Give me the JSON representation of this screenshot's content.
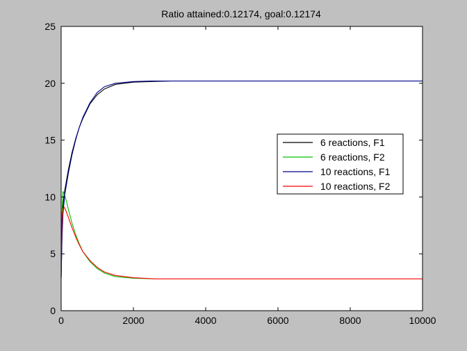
{
  "window": {
    "background_color": "#c0c0c0"
  },
  "chart_data": {
    "type": "line",
    "title": "Ratio attained:0.12174, goal:0.12174",
    "xlabel": "",
    "ylabel": "",
    "xlim": [
      0,
      10000
    ],
    "ylim": [
      0,
      25
    ],
    "x_ticks": [
      0,
      2000,
      4000,
      6000,
      8000,
      10000
    ],
    "y_ticks": [
      0,
      5,
      10,
      15,
      20,
      25
    ],
    "x_tick_labels": [
      "0",
      "2000",
      "4000",
      "6000",
      "8000",
      "10000"
    ],
    "y_tick_labels": [
      "0",
      "5",
      "10",
      "15",
      "20",
      "25"
    ],
    "grid": false,
    "legend_position": "right-middle",
    "series": [
      {
        "name": "6 reactions, F1",
        "color": "#000000",
        "x": [
          0,
          25,
          50,
          100,
          200,
          300,
          400,
          500,
          600,
          800,
          1000,
          1200,
          1500,
          2000,
          2500,
          3000
        ],
        "y": [
          2.9,
          7.0,
          9.3,
          10.6,
          12.4,
          13.9,
          15.1,
          16.1,
          16.9,
          18.2,
          19.0,
          19.5,
          19.9,
          20.1,
          20.15,
          20.2
        ]
      },
      {
        "name": "6 reactions, F2",
        "color": "#00c000",
        "x": [
          0,
          20,
          50,
          100,
          150,
          200,
          300,
          400,
          500,
          600,
          800,
          1000,
          1200,
          1500,
          2000,
          2600
        ],
        "y": [
          2.9,
          8.5,
          10.5,
          10.1,
          9.6,
          8.9,
          7.7,
          6.7,
          5.9,
          5.2,
          4.3,
          3.7,
          3.3,
          3.0,
          2.85,
          2.8
        ]
      },
      {
        "name": "10 reactions, F1",
        "color": "#00008b",
        "x": [
          0,
          25,
          50,
          100,
          200,
          300,
          400,
          500,
          600,
          800,
          1000,
          1200,
          1500,
          2000,
          2500,
          3000,
          4000,
          6000,
          8000,
          10000
        ],
        "y": [
          2.9,
          6.5,
          8.5,
          10.2,
          12.1,
          13.7,
          15.0,
          16.1,
          17.0,
          18.3,
          19.2,
          19.7,
          20.0,
          20.15,
          20.2,
          20.2,
          20.2,
          20.2,
          20.2,
          20.2
        ]
      },
      {
        "name": "10 reactions, F2",
        "color": "#ff0000",
        "x": [
          0,
          20,
          50,
          80,
          120,
          200,
          300,
          400,
          500,
          600,
          800,
          1000,
          1200,
          1500,
          2000,
          2600,
          4000,
          6000,
          8000,
          10000
        ],
        "y": [
          2.9,
          8.0,
          8.9,
          9.1,
          8.9,
          8.2,
          7.3,
          6.5,
          5.8,
          5.2,
          4.4,
          3.8,
          3.4,
          3.1,
          2.9,
          2.8,
          2.8,
          2.8,
          2.8,
          2.8
        ]
      }
    ]
  }
}
